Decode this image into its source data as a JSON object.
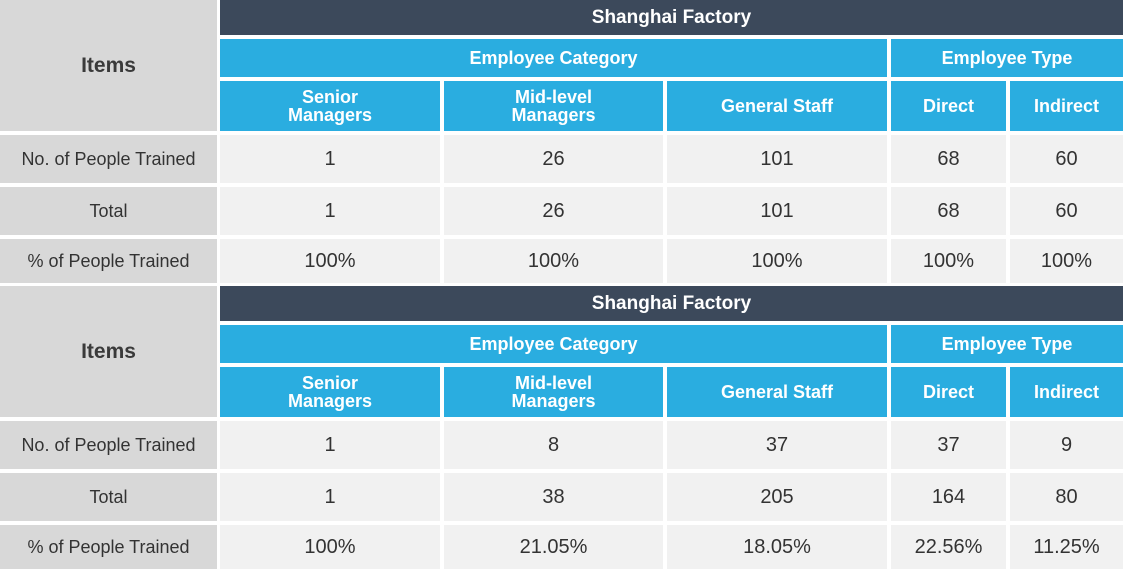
{
  "tables": [
    {
      "title": "Shanghai Factory",
      "items": "Items",
      "groups": [
        "Employee Category",
        "Employee Type"
      ],
      "columns": [
        "Senior Managers",
        "Mid-level Managers",
        "General Staff",
        "Direct",
        "Indirect"
      ],
      "rows": [
        {
          "label": "No. of People Trained",
          "values": [
            1,
            26,
            101,
            68,
            60
          ]
        },
        {
          "label": "Total",
          "values": [
            1,
            26,
            101,
            68,
            60
          ]
        },
        {
          "label": "% of People Trained",
          "values": [
            "100%",
            "100%",
            "100%",
            "100%",
            "100%"
          ]
        }
      ]
    },
    {
      "title": "Shanghai Factory",
      "items": "Items",
      "groups": [
        "Employee Category",
        "Employee Type"
      ],
      "columns": [
        "Senior Managers",
        "Mid-level Managers",
        "General Staff",
        "Direct",
        "Indirect"
      ],
      "rows": [
        {
          "label": "No. of People Trained",
          "values": [
            1,
            8,
            37,
            37,
            9
          ]
        },
        {
          "label": "Total",
          "values": [
            1,
            38,
            205,
            164,
            80
          ]
        },
        {
          "label": "% of People Trained",
          "values": [
            "100%",
            "21.05%",
            "18.05%",
            "22.56%",
            "11.25%"
          ]
        }
      ]
    }
  ]
}
